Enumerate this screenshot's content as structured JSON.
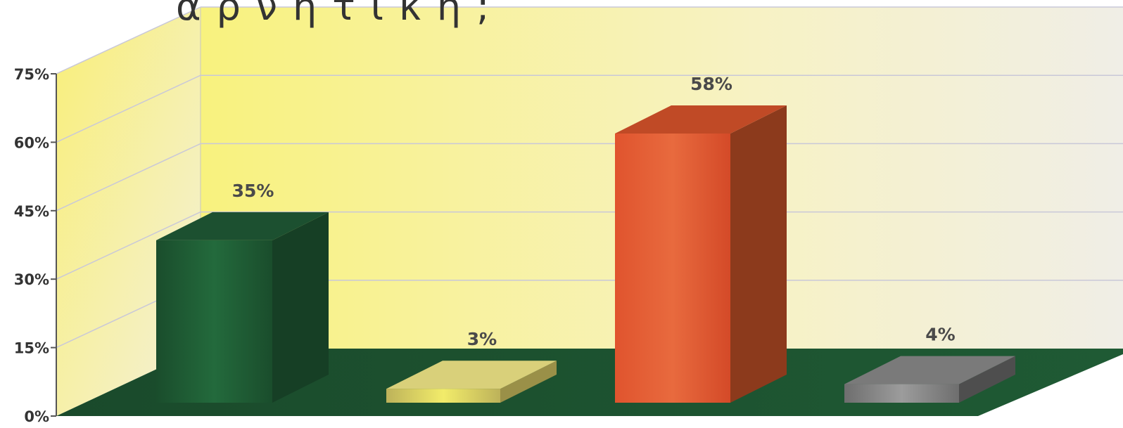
{
  "title": "αρνητική;",
  "chart_data": {
    "type": "bar",
    "title": "αρνητική;",
    "categories": [
      "",
      "",
      "",
      ""
    ],
    "values": [
      35,
      3,
      58,
      4
    ],
    "value_labels": [
      "35%",
      "3%",
      "58%",
      "4%"
    ],
    "ylim": [
      0,
      75
    ],
    "y_ticks": [
      0,
      15,
      30,
      45,
      60,
      75
    ],
    "y_tick_labels": [
      "0%",
      "15%",
      "30%",
      "45%",
      "60%",
      "75%"
    ],
    "grid": true,
    "style": "3d",
    "colors": [
      "#1f5a34",
      "#e3d878",
      "#e0532e",
      "#8a8a8a"
    ],
    "floor_color": "#1e5130",
    "wall_color": "#f6ef9a"
  }
}
